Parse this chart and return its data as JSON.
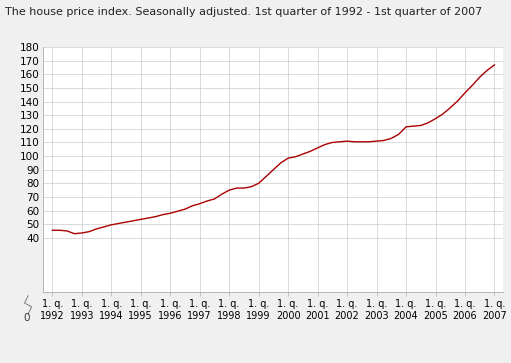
{
  "title": "The house price index. Seasonally adjusted. 1st quarter of 1992 - 1st quarter of 2007",
  "line_color": "#aa0000",
  "background_color": "#f0f0f0",
  "plot_bg_color": "#ffffff",
  "ylim": [
    0,
    180
  ],
  "yticks": [
    40,
    50,
    60,
    70,
    80,
    90,
    100,
    110,
    120,
    130,
    140,
    150,
    160,
    170,
    180
  ],
  "grid_color": "#cccccc",
  "x_labels": [
    "1. q.\n1992",
    "1. q.\n1993",
    "1. q.\n1994",
    "1. q.\n1995",
    "1. q.\n1996",
    "1. q.\n1997",
    "1. q.\n1998",
    "1. q.\n1999",
    "1. q.\n2000",
    "1. q.\n2001",
    "1. q.\n2002",
    "1. q.\n2003",
    "1. q.\n2004",
    "1. q.\n2005",
    "1. q.\n2006",
    "1. q.\n2007"
  ],
  "values": [
    45.5,
    45.5,
    45.0,
    43.0,
    43.5,
    44.5,
    46.5,
    48.0,
    49.5,
    50.5,
    51.5,
    52.5,
    53.5,
    54.5,
    55.5,
    57.0,
    58.0,
    59.5,
    61.0,
    63.5,
    65.0,
    67.0,
    68.5,
    72.0,
    75.0,
    76.5,
    76.5,
    77.5,
    80.0,
    85.0,
    90.0,
    95.0,
    98.5,
    99.5,
    101.5,
    103.5,
    106.0,
    108.5,
    110.0,
    110.5,
    111.0,
    110.5,
    110.5,
    110.5,
    111.0,
    111.5,
    113.0,
    116.0,
    121.5,
    122.0,
    122.5,
    124.5,
    127.5,
    131.0,
    135.5,
    140.5,
    146.5,
    152.0,
    158.0,
    163.0,
    167.0
  ]
}
